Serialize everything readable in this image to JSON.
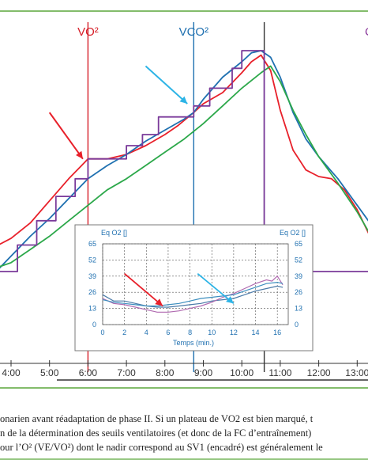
{
  "chart_data": [
    {
      "type": "line",
      "x_unit": "time",
      "x_ticks": [
        "4:00",
        "5:00",
        "6:00",
        "7:00",
        "8:00",
        "9:00",
        "10:00",
        "11:00",
        "12:00",
        "13:00"
      ],
      "markers": [
        {
          "label": "VO²",
          "at": "6:00",
          "color": "#d6202a"
        },
        {
          "label": "VCO²",
          "at": "8:45",
          "color": "#1f70b0"
        },
        {
          "label": "",
          "at": "10:35",
          "color": "#333333"
        }
      ],
      "right_edge_label": {
        "text": "C",
        "color": "#8b3a9c"
      },
      "arrows": [
        {
          "color": "#e8202a",
          "from": [
            "5:00",
            0.28
          ],
          "to": [
            "5:52",
            0.49
          ]
        },
        {
          "color": "#2db4e6",
          "from": [
            "7:30",
            0.07
          ],
          "to": [
            "8:35",
            0.24
          ]
        }
      ],
      "series": [
        {
          "color": "#e8202a",
          "x": [
            "3:40",
            "4:00",
            "4:30",
            "5:00",
            "5:30",
            "5:50",
            "6:00",
            "6:30",
            "7:00",
            "7:30",
            "8:00",
            "8:20",
            "8:45",
            "9:00",
            "9:30",
            "10:00",
            "10:15",
            "10:30",
            "10:45",
            "11:00",
            "11:20",
            "11:40",
            "12:00",
            "12:20",
            "12:40",
            "13:00",
            "13:20",
            "13:40"
          ],
          "y": [
            0.88,
            0.85,
            0.78,
            0.68,
            0.58,
            0.52,
            0.49,
            0.49,
            0.47,
            0.43,
            0.38,
            0.34,
            0.28,
            0.24,
            0.19,
            0.1,
            0.05,
            0.02,
            0.09,
            0.27,
            0.45,
            0.54,
            0.57,
            0.58,
            0.63,
            0.72,
            0.84,
            0.95
          ]
        },
        {
          "color": "#1f70b0",
          "x": [
            "3:40",
            "4:00",
            "4:30",
            "5:00",
            "5:30",
            "6:00",
            "6:30",
            "7:00",
            "7:30",
            "8:00",
            "8:30",
            "8:45",
            "9:00",
            "9:30",
            "10:00",
            "10:15",
            "10:30",
            "10:45",
            "11:00",
            "11:20",
            "11:40",
            "12:00",
            "12:30",
            "13:00",
            "13:20",
            "13:40"
          ],
          "y": [
            0.99,
            0.93,
            0.84,
            0.76,
            0.67,
            0.58,
            0.52,
            0.47,
            0.41,
            0.36,
            0.31,
            0.28,
            0.22,
            0.12,
            0.05,
            0.01,
            0.0,
            0.03,
            0.12,
            0.28,
            0.4,
            0.48,
            0.58,
            0.7,
            0.78,
            0.85
          ]
        },
        {
          "color": "#2ca84a",
          "x": [
            "3:40",
            "4:00",
            "4:30",
            "5:00",
            "5:30",
            "6:00",
            "6:30",
            "7:00",
            "7:30",
            "8:00",
            "8:30",
            "9:00",
            "9:30",
            "10:00",
            "10:30",
            "10:45",
            "11:00",
            "11:20",
            "11:40",
            "12:00",
            "12:30",
            "13:00",
            "13:20",
            "13:40"
          ],
          "y": [
            0.98,
            0.96,
            0.9,
            0.84,
            0.77,
            0.7,
            0.63,
            0.58,
            0.52,
            0.46,
            0.4,
            0.33,
            0.25,
            0.17,
            0.1,
            0.07,
            0.14,
            0.27,
            0.38,
            0.48,
            0.6,
            0.73,
            0.83,
            0.9
          ]
        },
        {
          "color": "#7a3a9a",
          "x": [
            "3:40",
            "4:10",
            "4:10",
            "4:40",
            "4:40",
            "5:10",
            "5:10",
            "5:40",
            "5:40",
            "6:00",
            "6:00",
            "7:00",
            "7:00",
            "7:25",
            "7:25",
            "7:50",
            "7:50",
            "8:45",
            "8:45",
            "9:10",
            "9:10",
            "9:45",
            "9:45",
            "10:00",
            "10:00",
            "10:30",
            "10:30",
            "10:35",
            "10:35",
            "13:50"
          ],
          "y": [
            1.0,
            1.0,
            0.88,
            0.88,
            0.77,
            0.77,
            0.66,
            0.66,
            0.58,
            0.58,
            0.49,
            0.49,
            0.43,
            0.43,
            0.38,
            0.38,
            0.3,
            0.3,
            0.25,
            0.25,
            0.17,
            0.17,
            0.08,
            0.08,
            0.0,
            0.0,
            0.0,
            0.0,
            1.0,
            1.0
          ]
        }
      ]
    },
    {
      "type": "line",
      "xlabel": "Temps (min.)",
      "ylabel_left": "Eq O2 []",
      "ylabel_right": "Eq O2 []",
      "x_ticks": [
        0,
        2,
        4,
        6,
        8,
        10,
        12,
        14,
        16
      ],
      "y_ticks": [
        0,
        13,
        26,
        39,
        52,
        65
      ],
      "xlim": [
        0,
        17
      ],
      "ylim": [
        0,
        65
      ],
      "grid": true,
      "arrows": [
        {
          "color": "#e8202a",
          "from": [
            2.0,
            41
          ],
          "to": [
            5.5,
            15
          ]
        },
        {
          "color": "#2db4e6",
          "from": [
            8.7,
            41
          ],
          "to": [
            12.0,
            17
          ]
        }
      ],
      "series": [
        {
          "color": "#4a7aa8",
          "x": [
            0,
            1,
            2,
            3,
            4,
            5,
            6,
            7,
            8,
            9,
            10,
            11,
            12,
            13,
            14,
            15,
            16,
            16.5
          ],
          "y": [
            24,
            19,
            19,
            17,
            15,
            14,
            14,
            15,
            16,
            17,
            19,
            20,
            21,
            24,
            27,
            29,
            31,
            30
          ]
        },
        {
          "color": "#b06ab0",
          "x": [
            0,
            1,
            2,
            3,
            4,
            5,
            6,
            7,
            8,
            9,
            10,
            11,
            12,
            13,
            14,
            15,
            15.5,
            16,
            16.5
          ],
          "y": [
            21,
            17,
            16,
            14,
            12,
            10,
            10,
            11,
            13,
            15,
            18,
            22,
            25,
            29,
            33,
            36,
            35,
            39,
            32
          ]
        },
        {
          "color": "#3d8fbf",
          "x": [
            0,
            1,
            2,
            3,
            4,
            5,
            6,
            7,
            8,
            9,
            10,
            11,
            12,
            13,
            14,
            15,
            16,
            16.5
          ],
          "y": [
            20,
            18,
            17,
            16,
            15,
            15,
            16,
            17,
            19,
            21,
            22,
            23,
            24,
            27,
            30,
            33,
            34,
            33
          ]
        }
      ]
    }
  ],
  "caption": {
    "line1": "onarien avant réadaptation de phase II. Si un plateau de VO2 est bien marqué, t",
    "line2": "n de la détermination des seuils ventilatoires (et donc de la FC d’entraînement)",
    "line3": "our l’O² (VE/VO²) dont le nadir correspond au SV1 (encadré) est généralement le"
  },
  "colors": {
    "frame": "#5aa63a",
    "red": "#e8202a",
    "blue": "#1f70b0",
    "green": "#2ca84a",
    "purple": "#7a3a9a"
  }
}
